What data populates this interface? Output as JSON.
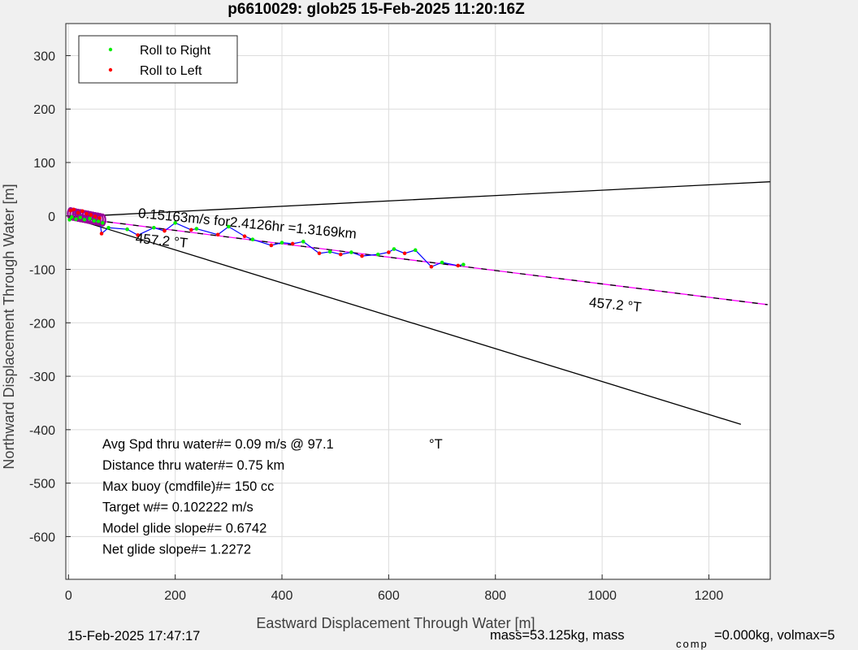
{
  "chart_data": {
    "type": "scatter",
    "title": "p6610029: glob25 15-Feb-2025 11:20:16Z",
    "xlabel": "Eastward Displacement Through Water [m]",
    "ylabel": "Northward Displacement Through Water [m]",
    "xlim": [
      -5,
      1315
    ],
    "ylim": [
      -680,
      360
    ],
    "xticks": [
      0,
      200,
      400,
      600,
      800,
      1000,
      1200
    ],
    "yticks": [
      300,
      200,
      100,
      0,
      -100,
      -200,
      -300,
      -400,
      -500,
      -600
    ],
    "grid": true,
    "legend_position": "top-left",
    "series": [
      {
        "name": "Roll to Right",
        "color": "#00ee00",
        "points": [
          [
            2,
            -7
          ],
          [
            6,
            -2
          ],
          [
            14,
            -6
          ],
          [
            22,
            -3
          ],
          [
            30,
            -7
          ],
          [
            40,
            -5
          ],
          [
            48,
            -9
          ],
          [
            56,
            -10
          ],
          [
            64,
            -13
          ],
          [
            75,
            -22
          ],
          [
            110,
            -25
          ],
          [
            160,
            -22
          ],
          [
            200,
            -13
          ],
          [
            240,
            -24
          ],
          [
            300,
            -20
          ],
          [
            345,
            -44
          ],
          [
            400,
            -50
          ],
          [
            440,
            -48
          ],
          [
            490,
            -67
          ],
          [
            530,
            -68
          ],
          [
            580,
            -72
          ],
          [
            610,
            -62
          ],
          [
            650,
            -64
          ],
          [
            700,
            -87
          ],
          [
            740,
            -91
          ]
        ]
      },
      {
        "name": "Roll to Left",
        "color": "#ff0000",
        "points": [
          [
            4,
            10
          ],
          [
            10,
            12
          ],
          [
            18,
            6
          ],
          [
            26,
            9
          ],
          [
            34,
            4
          ],
          [
            42,
            2
          ],
          [
            50,
            -1
          ],
          [
            58,
            -4
          ],
          [
            62,
            -33
          ],
          [
            130,
            -36
          ],
          [
            180,
            -28
          ],
          [
            230,
            -26
          ],
          [
            280,
            -35
          ],
          [
            330,
            -38
          ],
          [
            380,
            -55
          ],
          [
            420,
            -52
          ],
          [
            470,
            -70
          ],
          [
            510,
            -72
          ],
          [
            550,
            -75
          ],
          [
            600,
            -68
          ],
          [
            630,
            -70
          ],
          [
            680,
            -95
          ],
          [
            730,
            -93
          ]
        ]
      }
    ],
    "track_color": "#0000ff",
    "dive_points_color": "#990099",
    "lines": [
      {
        "name": "mean-track",
        "color": "#ff00ff",
        "dashed_overlay": "#000000",
        "from": [
          0,
          -2
        ],
        "to": [
          1310,
          -166
        ]
      },
      {
        "name": "upper-bound",
        "color": "#000000",
        "from": [
          0,
          -2
        ],
        "to": [
          1315,
          64
        ]
      },
      {
        "name": "lower-bound",
        "color": "#000000",
        "from": [
          0,
          -2
        ],
        "to": [
          1260,
          -390
        ]
      }
    ],
    "annotations": [
      {
        "text": "0.15163m/s for2.4126hr =1.3169km",
        "at": [
          130,
          -3
        ],
        "rotation_deg": 5.5
      },
      {
        "text": "457.2  °T",
        "at": [
          125,
          -50
        ],
        "rotation_deg": 5.5
      },
      {
        "text": "457.2  °T",
        "at": [
          975,
          -170
        ],
        "rotation_deg": 5.5
      }
    ],
    "info_lines": [
      "Avg Spd thru water#=  0.09 m/s @  97.1",
      "Distance thru water#=  0.75 km",
      "Max buoy (cmdfile)#= 150 cc",
      "Target w#= 0.102222 m/s",
      "Model glide slope#= 0.6742",
      "Net glide slope#= 1.2272"
    ],
    "info_unit": "°T"
  },
  "footer": {
    "date": "15-Feb-2025 17:47:17",
    "mass": "mass=53.125kg, mass",
    "comp_sub": "comp",
    "rest": "=0.000kg, volmax=5"
  }
}
